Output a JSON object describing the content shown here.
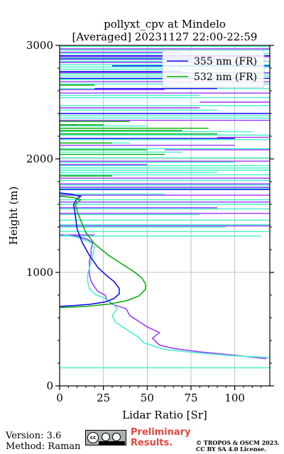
{
  "chart_data": {
    "type": "line",
    "title": "pollyxt_cpv at Mindelo",
    "subtitle": "[Averaged] 20231127 22:00-22:59",
    "xlabel": "Lidar Ratio [Sr]",
    "ylabel": "Height (m)",
    "xlim": [
      0,
      120
    ],
    "ylim": [
      0,
      3000
    ],
    "xticks": [
      "0",
      "25",
      "50",
      "75",
      "100"
    ],
    "yticks": [
      "0",
      "1000",
      "2000",
      "3000"
    ],
    "grid": true,
    "legend_position": "top-right",
    "series": [
      {
        "name": "355 nm (FR)",
        "color": "#0000ff",
        "points": [
          [
            0,
            700
          ],
          [
            10,
            710
          ],
          [
            18,
            720
          ],
          [
            26,
            740
          ],
          [
            31,
            770
          ],
          [
            34,
            810
          ],
          [
            34,
            860
          ],
          [
            31,
            920
          ],
          [
            27,
            970
          ],
          [
            22,
            1040
          ],
          [
            17,
            1150
          ],
          [
            13,
            1260
          ],
          [
            10,
            1380
          ],
          [
            9,
            1500
          ],
          [
            8,
            1600
          ],
          [
            10,
            1650
          ],
          [
            12,
            1670
          ],
          [
            6,
            1690
          ],
          [
            0,
            1700
          ]
        ]
      },
      {
        "name": "532 nm (FR)",
        "color": "#00aa00",
        "points": [
          [
            0,
            690
          ],
          [
            15,
            700
          ],
          [
            28,
            720
          ],
          [
            38,
            750
          ],
          [
            45,
            790
          ],
          [
            49,
            850
          ],
          [
            49,
            900
          ],
          [
            47,
            950
          ],
          [
            43,
            1000
          ],
          [
            37,
            1060
          ],
          [
            28,
            1150
          ],
          [
            20,
            1250
          ],
          [
            15,
            1350
          ],
          [
            12,
            1460
          ],
          [
            10,
            1540
          ],
          [
            9,
            1600
          ],
          [
            12,
            1640
          ],
          [
            8,
            1660
          ],
          [
            0,
            1670
          ]
        ]
      },
      {
        "name": "",
        "color": "#9933ff",
        "points": [
          [
            118,
            240
          ],
          [
            100,
            270
          ],
          [
            80,
            300
          ],
          [
            65,
            330
          ],
          [
            57,
            360
          ],
          [
            53,
            420
          ],
          [
            57,
            470
          ],
          [
            50,
            520
          ],
          [
            45,
            570
          ],
          [
            40,
            620
          ],
          [
            38,
            680
          ],
          [
            30,
            720
          ],
          [
            27,
            760
          ],
          [
            26,
            800
          ],
          [
            22,
            830
          ],
          [
            20,
            870
          ],
          [
            18,
            920
          ],
          [
            17,
            980
          ],
          [
            17,
            1040
          ],
          [
            17,
            1100
          ],
          [
            18,
            1160
          ],
          [
            18,
            1210
          ],
          [
            19,
            1260
          ],
          [
            16,
            1290
          ],
          [
            10,
            1320
          ],
          [
            5,
            1330
          ]
        ]
      },
      {
        "name": "",
        "color": "#40f0c8",
        "points": [
          [
            120,
            250
          ],
          [
            100,
            265
          ],
          [
            80,
            290
          ],
          [
            60,
            320
          ],
          [
            48,
            380
          ],
          [
            45,
            430
          ],
          [
            40,
            480
          ],
          [
            36,
            520
          ],
          [
            32,
            560
          ],
          [
            30,
            620
          ],
          [
            33,
            680
          ],
          [
            30,
            730
          ],
          [
            26,
            770
          ],
          [
            20,
            810
          ],
          [
            17,
            860
          ],
          [
            16,
            920
          ],
          [
            16,
            980
          ],
          [
            17,
            1040
          ],
          [
            18,
            1100
          ],
          [
            19,
            1160
          ],
          [
            20,
            1220
          ],
          [
            17,
            1270
          ],
          [
            10,
            1310
          ],
          [
            3,
            1330
          ]
        ]
      }
    ],
    "noise_bands": [
      {
        "color": "#40f0c8",
        "heights": [
          160,
          1320,
          1360,
          1400,
          1420,
          1460,
          1510,
          1560,
          1600,
          1640,
          1690,
          1740,
          1770,
          1810,
          1860,
          1880,
          1900,
          1920,
          1940,
          1970,
          2010,
          2060,
          2090,
          2140,
          2170,
          2210,
          2240,
          2290,
          2360,
          2380,
          2430,
          2470,
          2540,
          2560,
          2620,
          2660,
          2700,
          2730,
          2750,
          2790,
          2810,
          2830,
          2860,
          2890,
          2930,
          2960,
          2990
        ],
        "xmax": [
          120,
          115,
          120,
          95,
          120,
          120,
          80,
          120,
          120,
          120,
          60,
          120,
          120,
          120,
          120,
          90,
          120,
          120,
          120,
          100,
          120,
          70,
          120,
          40,
          120,
          120,
          110,
          50,
          120,
          120,
          90,
          120,
          120,
          80,
          120,
          120,
          60,
          120,
          120,
          100,
          120,
          120,
          120,
          75,
          120,
          120,
          120
        ]
      },
      {
        "color": "#9933ff",
        "heights": [
          1330,
          1410,
          1520,
          1570,
          1620,
          1680,
          1750,
          1780,
          1830,
          1950,
          1980,
          2080,
          2120,
          2190,
          2220,
          2300,
          2340,
          2450,
          2500,
          2580,
          2610,
          2680,
          2760,
          2850,
          2900,
          2940,
          2970
        ],
        "xmin": [
          0,
          0,
          0,
          0,
          0,
          0,
          0,
          0,
          0,
          0,
          0,
          60,
          0,
          90,
          0,
          0,
          0,
          0,
          80,
          0,
          0,
          0,
          0,
          0,
          0,
          0,
          0
        ],
        "xmax": [
          20,
          120,
          120,
          90,
          120,
          120,
          120,
          120,
          120,
          50,
          120,
          120,
          100,
          120,
          40,
          10,
          120,
          80,
          120,
          120,
          60,
          120,
          120,
          110,
          120,
          70,
          120
        ]
      },
      {
        "color": "#0000ff",
        "heights": [
          1730,
          2180,
          2400,
          2620,
          2710,
          2770,
          2820,
          2880,
          2910
        ],
        "xmin": [
          0,
          0,
          0,
          20,
          0,
          0,
          30,
          0,
          0
        ],
        "xmax": [
          120,
          100,
          120,
          90,
          120,
          70,
          120,
          95,
          120
        ]
      },
      {
        "color": "#00aa00",
        "heights": [
          1850,
          2040,
          2080,
          2140,
          2220,
          2250,
          2270,
          2300,
          2330,
          2650
        ],
        "xmin": [
          0,
          0,
          0,
          0,
          0,
          0,
          0,
          0,
          0,
          0
        ],
        "xmax": [
          30,
          60,
          50,
          30,
          90,
          70,
          85,
          25,
          40,
          20
        ]
      }
    ]
  },
  "footer": {
    "version": "Version: 3.6",
    "method": "Method: Raman",
    "preliminary_line1": "Preliminary",
    "preliminary_line2": "Results.",
    "copyright_line1": "© TROPOS & OSCM 2023.",
    "copyright_line2": "CC BY SA 4.0 License.",
    "license_badge": "cc by sa"
  }
}
